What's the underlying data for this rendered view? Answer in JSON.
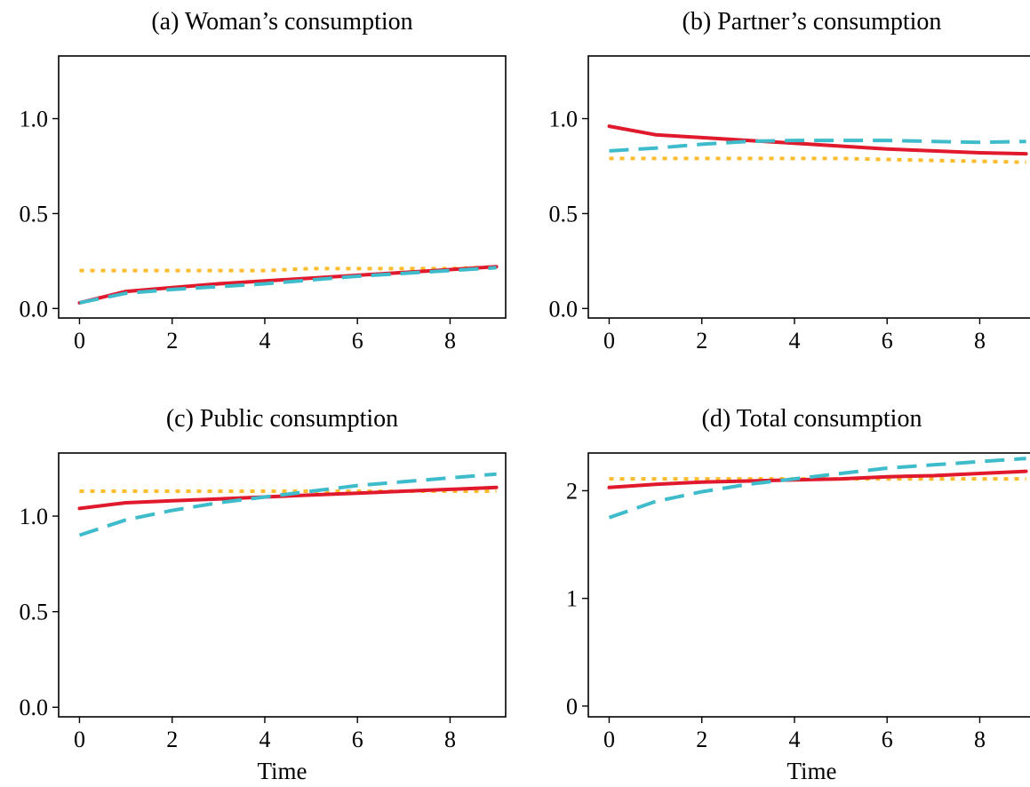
{
  "styles": {
    "red": "#e0192d",
    "teal": "#3fbccb",
    "yellow": "#fdbc2d"
  },
  "chart_data": [
    {
      "id": "a",
      "type": "line",
      "title": "(a) Woman’s consumption",
      "xlabel": "",
      "xlim": [
        -0.45,
        9.2
      ],
      "ylim": [
        -0.05,
        1.33
      ],
      "xticks": [
        0,
        2,
        4,
        6,
        8
      ],
      "yticks": [
        0.0,
        0.5,
        1.0
      ],
      "ytick_labels": [
        "0.0",
        "0.5",
        "1.0"
      ],
      "x": [
        0,
        1,
        2,
        3,
        4,
        5,
        6,
        7,
        8,
        9
      ],
      "series": [
        {
          "style": "yellow",
          "values": [
            0.2,
            0.2,
            0.2,
            0.2,
            0.2,
            0.21,
            0.21,
            0.21,
            0.21,
            0.22
          ]
        },
        {
          "style": "red",
          "values": [
            0.03,
            0.09,
            0.11,
            0.13,
            0.145,
            0.16,
            0.175,
            0.19,
            0.205,
            0.22
          ]
        },
        {
          "style": "teal",
          "values": [
            0.03,
            0.08,
            0.1,
            0.115,
            0.13,
            0.15,
            0.17,
            0.185,
            0.2,
            0.215
          ]
        }
      ]
    },
    {
      "id": "b",
      "type": "line",
      "title": "(b) Partner’s consumption",
      "xlabel": "",
      "xlim": [
        -0.45,
        9.2
      ],
      "ylim": [
        -0.05,
        1.33
      ],
      "xticks": [
        0,
        2,
        4,
        6,
        8
      ],
      "yticks": [
        0.0,
        0.5,
        1.0
      ],
      "ytick_labels": [
        "0.0",
        "0.5",
        "1.0"
      ],
      "x": [
        0,
        1,
        2,
        3,
        4,
        5,
        6,
        7,
        8,
        9
      ],
      "series": [
        {
          "style": "yellow",
          "values": [
            0.79,
            0.79,
            0.79,
            0.79,
            0.79,
            0.79,
            0.785,
            0.78,
            0.775,
            0.77
          ]
        },
        {
          "style": "red",
          "values": [
            0.96,
            0.915,
            0.9,
            0.885,
            0.87,
            0.855,
            0.84,
            0.83,
            0.82,
            0.815
          ]
        },
        {
          "style": "teal",
          "values": [
            0.83,
            0.845,
            0.865,
            0.88,
            0.885,
            0.885,
            0.885,
            0.88,
            0.875,
            0.88
          ]
        }
      ]
    },
    {
      "id": "c",
      "type": "line",
      "title": "(c) Public consumption",
      "xlabel": "Time",
      "xlim": [
        -0.45,
        9.2
      ],
      "ylim": [
        -0.05,
        1.33
      ],
      "xticks": [
        0,
        2,
        4,
        6,
        8
      ],
      "yticks": [
        0.0,
        0.5,
        1.0
      ],
      "ytick_labels": [
        "0.0",
        "0.5",
        "1.0"
      ],
      "x": [
        0,
        1,
        2,
        3,
        4,
        5,
        6,
        7,
        8,
        9
      ],
      "series": [
        {
          "style": "yellow",
          "values": [
            1.13,
            1.13,
            1.13,
            1.13,
            1.13,
            1.13,
            1.13,
            1.13,
            1.13,
            1.13
          ]
        },
        {
          "style": "red",
          "values": [
            1.04,
            1.07,
            1.08,
            1.09,
            1.1,
            1.11,
            1.12,
            1.13,
            1.14,
            1.15
          ]
        },
        {
          "style": "teal",
          "values": [
            0.9,
            0.98,
            1.03,
            1.07,
            1.1,
            1.13,
            1.16,
            1.18,
            1.2,
            1.22
          ]
        }
      ]
    },
    {
      "id": "d",
      "type": "line",
      "title": "(d) Total consumption",
      "xlabel": "Time",
      "xlim": [
        -0.45,
        9.2
      ],
      "ylim": [
        -0.1,
        2.35
      ],
      "xticks": [
        0,
        2,
        4,
        6,
        8
      ],
      "yticks": [
        0,
        1,
        2
      ],
      "ytick_labels": [
        "0",
        "1",
        "2"
      ],
      "x": [
        0,
        1,
        2,
        3,
        4,
        5,
        6,
        7,
        8,
        9
      ],
      "series": [
        {
          "style": "yellow",
          "values": [
            2.11,
            2.11,
            2.11,
            2.11,
            2.11,
            2.11,
            2.11,
            2.11,
            2.11,
            2.11
          ]
        },
        {
          "style": "red",
          "values": [
            2.03,
            2.06,
            2.08,
            2.09,
            2.1,
            2.11,
            2.13,
            2.14,
            2.16,
            2.18
          ]
        },
        {
          "style": "teal",
          "values": [
            1.75,
            1.9,
            1.99,
            2.06,
            2.11,
            2.16,
            2.21,
            2.24,
            2.27,
            2.3
          ]
        }
      ]
    }
  ]
}
